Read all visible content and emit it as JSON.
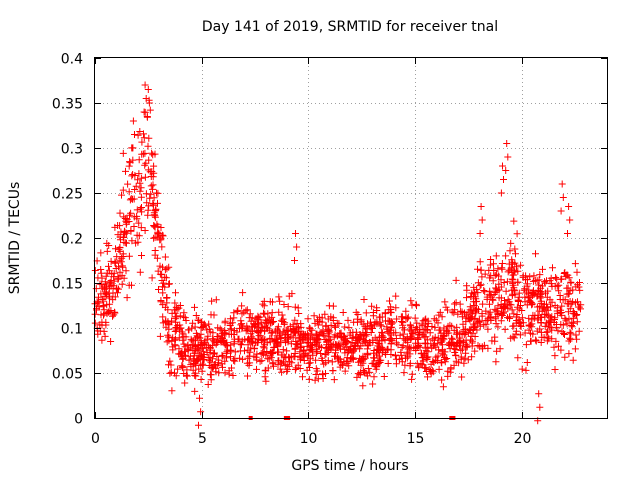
{
  "chart_data": {
    "type": "scatter",
    "title": "Day 141 of 2019, SRMTID for receiver tnal",
    "xlabel": "GPS time / hours",
    "ylabel": "SRMTID / TECUs",
    "xlim": [
      0,
      24
    ],
    "ylim": [
      0,
      0.4
    ],
    "xticks": [
      0,
      5,
      10,
      15,
      20
    ],
    "xtick_labels": [
      "0",
      "5",
      "10",
      "15",
      "20"
    ],
    "yticks": [
      0,
      0.05,
      0.1,
      0.15,
      0.2,
      0.25,
      0.3,
      0.35,
      0.4
    ],
    "ytick_labels": [
      "0",
      "0.05",
      "0.1",
      "0.15",
      "0.2",
      "0.25",
      "0.3",
      "0.35",
      "0.4"
    ],
    "grid": true,
    "marker": "plus",
    "series_color": "#ff0000",
    "series": [
      {
        "name": "SRMTID",
        "trend": [
          {
            "x": 0.0,
            "y": 0.14,
            "spread": 0.035
          },
          {
            "x": 0.5,
            "y": 0.13,
            "spread": 0.035
          },
          {
            "x": 1.0,
            "y": 0.16,
            "spread": 0.04
          },
          {
            "x": 1.5,
            "y": 0.22,
            "spread": 0.05
          },
          {
            "x": 2.0,
            "y": 0.25,
            "spread": 0.055
          },
          {
            "x": 2.5,
            "y": 0.28,
            "spread": 0.06
          },
          {
            "x": 3.0,
            "y": 0.19,
            "spread": 0.05
          },
          {
            "x": 3.5,
            "y": 0.1,
            "spread": 0.035
          },
          {
            "x": 4.0,
            "y": 0.08,
            "spread": 0.03
          },
          {
            "x": 5.0,
            "y": 0.08,
            "spread": 0.028
          },
          {
            "x": 6.0,
            "y": 0.085,
            "spread": 0.028
          },
          {
            "x": 7.0,
            "y": 0.09,
            "spread": 0.028
          },
          {
            "x": 8.0,
            "y": 0.09,
            "spread": 0.028
          },
          {
            "x": 9.0,
            "y": 0.085,
            "spread": 0.028
          },
          {
            "x": 10.0,
            "y": 0.08,
            "spread": 0.025
          },
          {
            "x": 11.0,
            "y": 0.085,
            "spread": 0.025
          },
          {
            "x": 12.0,
            "y": 0.08,
            "spread": 0.025
          },
          {
            "x": 13.0,
            "y": 0.085,
            "spread": 0.028
          },
          {
            "x": 14.0,
            "y": 0.09,
            "spread": 0.03
          },
          {
            "x": 15.0,
            "y": 0.085,
            "spread": 0.028
          },
          {
            "x": 16.0,
            "y": 0.08,
            "spread": 0.028
          },
          {
            "x": 17.0,
            "y": 0.09,
            "spread": 0.03
          },
          {
            "x": 17.8,
            "y": 0.11,
            "spread": 0.035
          },
          {
            "x": 18.5,
            "y": 0.13,
            "spread": 0.04
          },
          {
            "x": 19.0,
            "y": 0.13,
            "spread": 0.04
          },
          {
            "x": 19.5,
            "y": 0.15,
            "spread": 0.045
          },
          {
            "x": 20.0,
            "y": 0.12,
            "spread": 0.04
          },
          {
            "x": 21.0,
            "y": 0.12,
            "spread": 0.04
          },
          {
            "x": 22.0,
            "y": 0.12,
            "spread": 0.04
          },
          {
            "x": 22.8,
            "y": 0.11,
            "spread": 0.035
          }
        ],
        "points_per_hour": 90,
        "x_range": [
          0,
          22.8
        ],
        "spikes": [
          {
            "x": 2.35,
            "y": 0.37
          },
          {
            "x": 2.5,
            "y": 0.365
          },
          {
            "x": 1.8,
            "y": 0.33
          },
          {
            "x": 9.4,
            "y": 0.205
          },
          {
            "x": 19.3,
            "y": 0.305
          },
          {
            "x": 19.1,
            "y": 0.28
          },
          {
            "x": 18.1,
            "y": 0.235
          },
          {
            "x": 21.9,
            "y": 0.26
          },
          {
            "x": 22.2,
            "y": 0.235
          },
          {
            "x": 4.9,
            "y": 0.022
          },
          {
            "x": 20.8,
            "y": 0.027
          }
        ]
      }
    ],
    "gap_markers": [
      {
        "x": 7.3,
        "y": 0
      },
      {
        "x": 8.95,
        "y": 0
      },
      {
        "x": 9.05,
        "y": 0
      },
      {
        "x": 16.7,
        "y": 0
      },
      {
        "x": 16.8,
        "y": 0
      }
    ]
  }
}
